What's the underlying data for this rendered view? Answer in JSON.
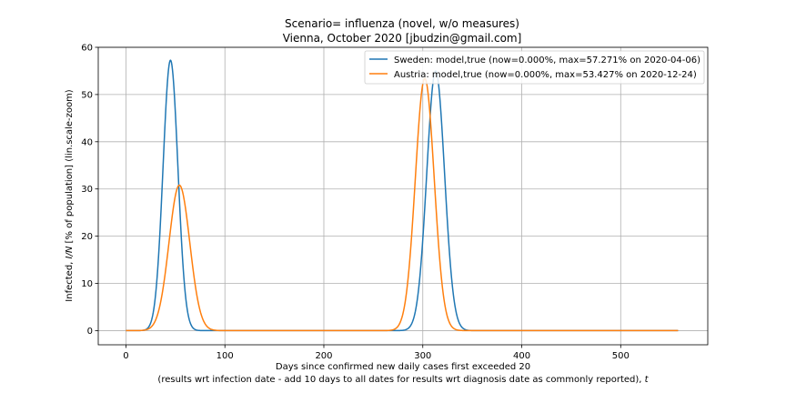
{
  "chart_data": {
    "type": "line",
    "title_line1": "Scenario= influenza (novel, w/o measures)",
    "title_line2": "Vienna, October 2020 [jbudzin@gmail.com]",
    "xlabel_line1": "Days since confirmed new daily cases first exceeded 20",
    "xlabel_line2": "(results wrt infection date - add 10 days to all dates for results wrt diagnosis date as commonly reported), ",
    "xlabel_var": "t",
    "ylabel_pre": "Infected, ",
    "ylabel_var": "I/N",
    "ylabel_post": " [% of population] (lin.scale-zoom)",
    "xlim": [
      -28,
      588
    ],
    "ylim": [
      -3,
      60
    ],
    "xticks": [
      0,
      100,
      200,
      300,
      400,
      500
    ],
    "yticks": [
      0,
      10,
      20,
      30,
      40,
      50,
      60
    ],
    "grid": true,
    "legend_position": "top-right",
    "series": [
      {
        "name": "Sweden: model,true (now=0.000%, max=57.271% on 2020-04-06)",
        "color": "#1f77b4",
        "x_end": 558,
        "peaks": [
          {
            "center": 45,
            "height": 57.271,
            "sigma": 7.5
          },
          {
            "center": 313,
            "height": 55,
            "sigma": 9
          }
        ]
      },
      {
        "name": "Austria: model,true (now=0.000%, max=53.427% on 2020-12-24)",
        "color": "#ff7f0e",
        "x_end": 558,
        "peaks": [
          {
            "center": 54,
            "height": 30.8,
            "sigma": 10.5
          },
          {
            "center": 302,
            "height": 53.427,
            "sigma": 9.5
          }
        ]
      }
    ]
  }
}
